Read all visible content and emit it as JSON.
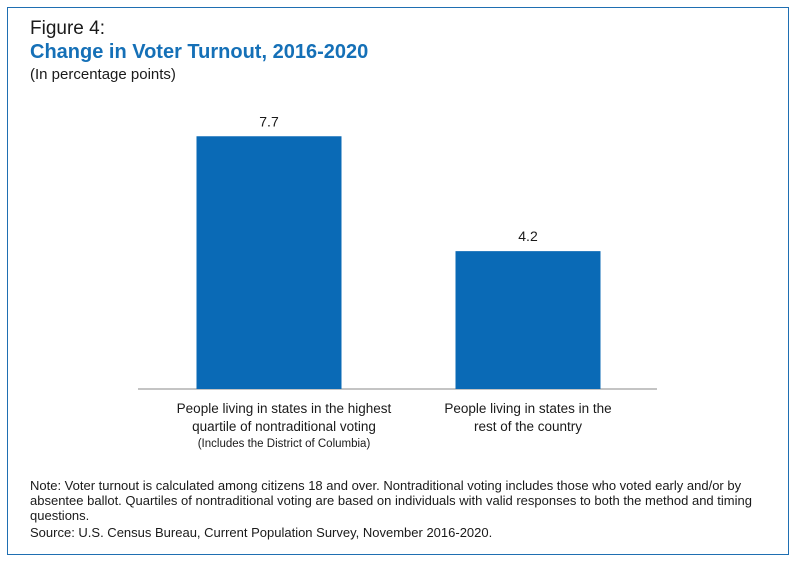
{
  "figure_label": "Figure 4:",
  "colors": {
    "bar": "#0a6ab6",
    "title": "#1570b7",
    "frame": "#1f6fb2",
    "axis": "#8a8a8a"
  },
  "chart_data": {
    "type": "bar",
    "title": "Change in Voter Turnout, 2016-2020",
    "subtitle": "(In percentage points)",
    "categories": [
      {
        "lines": [
          "People living in states in the highest",
          "quartile of nontraditional voting"
        ],
        "note": "(Includes the District of Columbia)"
      },
      {
        "lines": [
          "People living in states in the",
          "rest of the country"
        ],
        "note": ""
      }
    ],
    "values": [
      7.7,
      4.2
    ],
    "data_labels": [
      "7.7",
      "4.2"
    ],
    "ylim": [
      0,
      8.5
    ],
    "grid": false,
    "legend": "none"
  },
  "footer": {
    "note": "Note: Voter turnout is calculated among citizens 18 and over. Nontraditional voting includes those who voted early and/or by absentee ballot. Quartiles of nontraditional voting are based on individuals with valid responses to both the method and timing questions.",
    "source": "Source: U.S. Census Bureau, Current Population Survey, November 2016-2020."
  }
}
